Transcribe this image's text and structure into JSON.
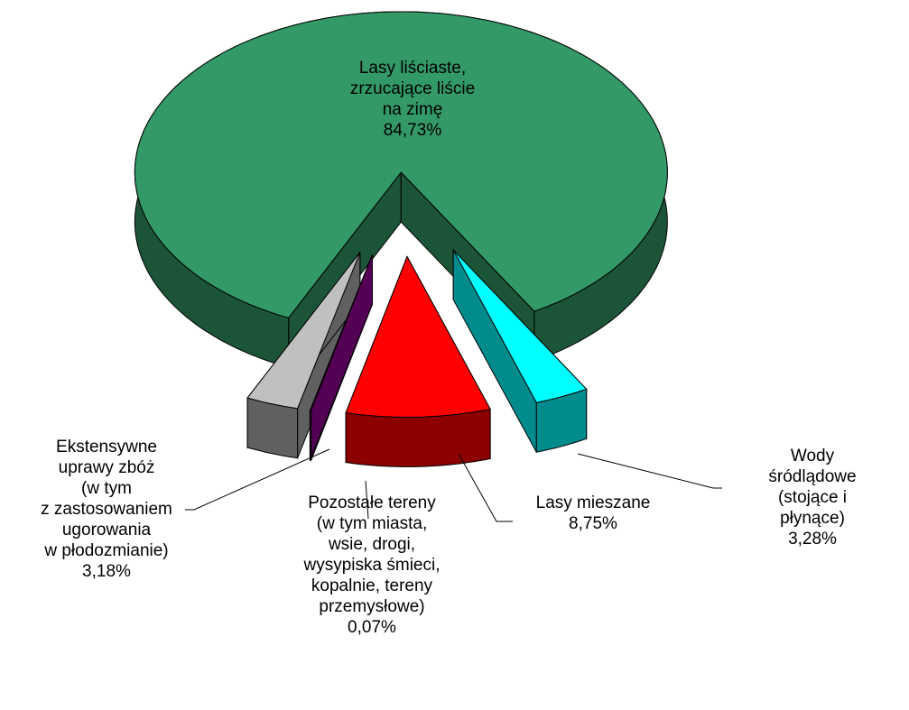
{
  "chart_data": {
    "type": "pie3d",
    "categories": [
      "Lasy liściaste,\nzrzucające liście\nna zimę",
      "Wody śródlądowe\n(stojące i płynące)",
      "Lasy mieszane",
      "Pozostałe tereny\n(w tym miasta,\nwsie, drogi,\nwysypiska śmieci,\nkopalnie, tereny\nprzemysłowe)",
      "Ekstensywne\nuprawy zbóż\n(w tym\nz zastosowaniem\nugorowania\nw płodozmianie)"
    ],
    "values": [
      84.73,
      3.28,
      8.75,
      0.07,
      3.18
    ],
    "value_labels": [
      "84,73%",
      "3,28%",
      "8,75%",
      "0,07%",
      "3,18%"
    ],
    "colors": [
      "#339966",
      "#00ffff",
      "#ff0000",
      "#990099",
      "#c0c0c0"
    ]
  }
}
